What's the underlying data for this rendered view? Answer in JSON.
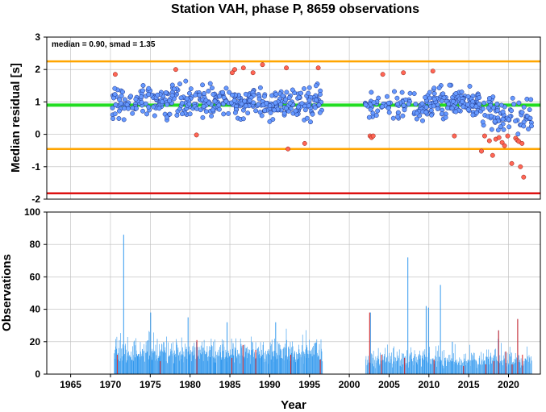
{
  "chart_data": [
    {
      "type": "scatter",
      "title": "Station VAH, phase P, 8659 observations",
      "stats_label": "median = 0.90, smad = 1.35",
      "xlabel": "Year",
      "ylabel": "Median residual [s]",
      "xlim": [
        1962,
        2024
      ],
      "ylim": [
        -2,
        3
      ],
      "x_ticks": [
        "1965",
        "1970",
        "1975",
        "1980",
        "1985",
        "1990",
        "1995",
        "2000",
        "2005",
        "2010",
        "2015",
        "2020"
      ],
      "y_ticks": [
        "-2",
        "-1",
        "0",
        "1",
        "2",
        "3"
      ],
      "grid": true,
      "reference_lines": [
        {
          "name": "median",
          "value": 0.9,
          "color": "#22dd22"
        },
        {
          "name": "upper bound",
          "value": 2.25,
          "color": "#ffa500"
        },
        {
          "name": "lower bound",
          "value": -0.45,
          "color": "#ffa500"
        },
        {
          "name": "limit",
          "value": -1.82,
          "color": "#dd1111"
        }
      ],
      "colors": {
        "normal": "#6699ff",
        "outlier": "#ff6655"
      },
      "outliers": [
        [
          1970.6,
          1.85
        ],
        [
          1978.2,
          2.0
        ],
        [
          1980.8,
          -0.02
        ],
        [
          1985.3,
          1.9
        ],
        [
          1985.6,
          2.0
        ],
        [
          1986.7,
          2.05
        ],
        [
          1987.9,
          1.9
        ],
        [
          1989.1,
          2.15
        ],
        [
          1992.1,
          2.05
        ],
        [
          1992.3,
          -0.45
        ],
        [
          1994.4,
          -0.28
        ],
        [
          1996.1,
          2.05
        ],
        [
          2002.6,
          -0.05
        ],
        [
          2002.8,
          -0.1
        ],
        [
          2003.0,
          -0.05
        ],
        [
          2004.2,
          1.85
        ],
        [
          2006.8,
          1.9
        ],
        [
          2010.5,
          1.95
        ],
        [
          2013.2,
          -0.05
        ],
        [
          2016.6,
          -0.52
        ],
        [
          2017.0,
          -0.05
        ],
        [
          2017.6,
          -0.2
        ],
        [
          2018.0,
          -0.65
        ],
        [
          2018.4,
          -0.15
        ],
        [
          2018.8,
          -0.1
        ],
        [
          2019.2,
          -0.25
        ],
        [
          2019.5,
          -0.35
        ],
        [
          2019.9,
          -0.05
        ],
        [
          2020.4,
          -0.9
        ],
        [
          2020.9,
          -0.12
        ],
        [
          2021.1,
          -0.18
        ],
        [
          2021.3,
          -0.22
        ],
        [
          2021.5,
          -1.0
        ],
        [
          2021.7,
          -0.28
        ],
        [
          2021.9,
          -1.32
        ]
      ],
      "segments": [
        {
          "from": 1970.2,
          "to": 1996.6,
          "count": 400,
          "mean": 1.0,
          "spread": 0.48
        },
        {
          "from": 2002.0,
          "to": 2009.9,
          "count": 85,
          "mean": 0.85,
          "spread": 0.42
        },
        {
          "from": 2010.0,
          "to": 2016.5,
          "count": 125,
          "mean": 0.95,
          "spread": 0.45
        },
        {
          "from": 2016.5,
          "to": 2022.9,
          "count": 85,
          "mean": 0.6,
          "spread": 0.5
        }
      ]
    },
    {
      "type": "bar",
      "xlabel": "Year",
      "ylabel": "Observations",
      "xlim": [
        1962,
        2024
      ],
      "ylim": [
        0,
        100
      ],
      "x_ticks": [
        "1965",
        "1970",
        "1975",
        "1980",
        "1985",
        "1990",
        "1995",
        "2000",
        "2005",
        "2010",
        "2015",
        "2020"
      ],
      "y_ticks": [
        "0",
        "20",
        "40",
        "60",
        "80",
        "100"
      ],
      "grid": true,
      "colors": {
        "normal": "#3399ee",
        "outlier": "#dd2222"
      },
      "peaks": [
        [
          1971.6,
          86
        ],
        [
          1975.0,
          38
        ],
        [
          1979.7,
          35
        ],
        [
          1984.6,
          32
        ],
        [
          1990.7,
          32
        ],
        [
          2002.6,
          38
        ],
        [
          2007.3,
          72
        ],
        [
          2009.6,
          42
        ],
        [
          2009.9,
          41
        ],
        [
          2011.4,
          55
        ],
        [
          2012.9,
          20
        ],
        [
          2018.7,
          27
        ],
        [
          2021.1,
          34
        ]
      ],
      "segments": [
        {
          "from": 1970.4,
          "to": 1996.6,
          "count": 460,
          "base": 6,
          "spread": 18
        },
        {
          "from": 2002.0,
          "to": 2022.9,
          "count": 320,
          "base": 3,
          "spread": 14
        }
      ],
      "red_bars": [
        [
          1970.8,
          12
        ],
        [
          1976.2,
          8
        ],
        [
          1980.8,
          21
        ],
        [
          1985.2,
          10
        ],
        [
          1986.6,
          18
        ],
        [
          1988.2,
          15
        ],
        [
          1992.6,
          12
        ],
        [
          1996.3,
          9
        ],
        [
          2002.5,
          38
        ],
        [
          2004.0,
          12
        ],
        [
          2006.9,
          10
        ],
        [
          2010.6,
          9
        ],
        [
          2014.3,
          5
        ],
        [
          2017.1,
          6
        ],
        [
          2018.1,
          8
        ],
        [
          2018.7,
          27
        ],
        [
          2019.6,
          14
        ],
        [
          2020.4,
          6
        ],
        [
          2021.1,
          34
        ],
        [
          2021.7,
          12
        ]
      ]
    }
  ]
}
